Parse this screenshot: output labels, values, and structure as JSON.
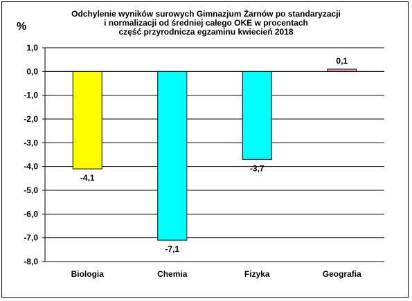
{
  "chart_data": {
    "type": "bar",
    "title_lines": [
      "Odchylenie wyników surowych Gimnazjum Żarnów po standaryzacji",
      "i normalizacji od średniej całego OKE w procentach",
      "część przyrodnicza egzaminu kwiecień 2018"
    ],
    "ylabel": "%",
    "categories": [
      "Biologia",
      "Chemia",
      "Fizyka",
      "Geografia"
    ],
    "values": [
      -4.1,
      -7.1,
      -3.7,
      0.1
    ],
    "value_labels": [
      "-4,1",
      "-7,1",
      "-3,7",
      "0,1"
    ],
    "bar_colors": [
      "#ffff00",
      "#00ffff",
      "#00ffff",
      "#ff99cc"
    ],
    "ylim": [
      -8.0,
      1.0
    ],
    "yticks": [
      1.0,
      0.0,
      -1.0,
      -2.0,
      -3.0,
      -4.0,
      -5.0,
      -6.0,
      -7.0,
      -8.0
    ],
    "ytick_labels": [
      "1,0",
      "0,0",
      "-1,0",
      "-2,0",
      "-3,0",
      "-4,0",
      "-5,0",
      "-6,0",
      "-7,0",
      "-8,0"
    ],
    "grid": true,
    "legend": "none"
  }
}
